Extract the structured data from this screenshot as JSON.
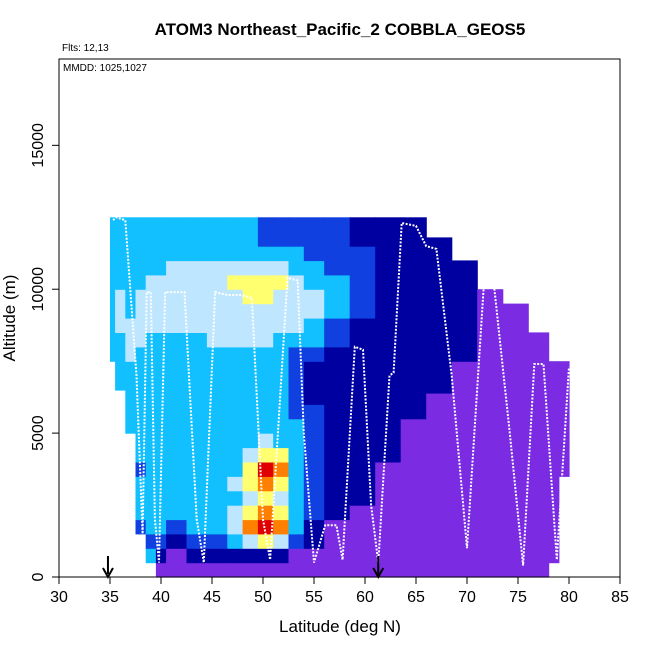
{
  "chart_data": {
    "type": "heatmap",
    "title": "ATOM3 Northeast_Pacific_2 COBBLA_GEOS5",
    "flights_label": "Flts: 12,13",
    "dates_label": "MMDD: 1025,1027",
    "xlabel": "Latitude (deg N)",
    "ylabel": "Altitude (m)",
    "xlim": [
      30,
      85
    ],
    "ylim": [
      0,
      18000
    ],
    "x_ticks": [
      30,
      35,
      40,
      45,
      50,
      55,
      60,
      65,
      70,
      75,
      80,
      85
    ],
    "y_ticks": [
      0,
      5000,
      10000,
      15000
    ],
    "arrow_markers_lat": [
      34.8,
      61.3
    ],
    "colormap": [
      "#7b2be2",
      "#0000a0",
      "#1040e0",
      "#12c0ff",
      "#bfe6ff",
      "#ffff70",
      "#ff8000",
      "#e00000"
    ],
    "color_levels": [
      0,
      1,
      2,
      3,
      4,
      5,
      6,
      7
    ],
    "grid_columns": [
      {
        "lat0": 35.0,
        "lat1": 35.5,
        "bottom": 7500,
        "top": 12500,
        "cells": [
          3,
          3,
          3,
          3,
          3,
          3,
          3,
          3,
          3,
          3
        ]
      },
      {
        "lat0": 35.5,
        "lat1": 36.5,
        "bottom": 6500,
        "top": 12500,
        "cells": [
          3,
          3,
          3,
          3,
          4,
          4,
          4,
          3,
          3,
          3,
          3,
          3
        ]
      },
      {
        "lat0": 36.5,
        "lat1": 37.5,
        "bottom": 5000,
        "top": 12500,
        "cells": [
          3,
          3,
          3,
          3,
          3,
          4,
          4,
          4,
          3,
          3,
          3,
          3,
          3,
          3,
          3
        ]
      },
      {
        "lat0": 37.5,
        "lat1": 38.5,
        "bottom": 1500,
        "top": 12500,
        "cells": [
          2,
          3,
          3,
          3,
          2,
          3,
          3,
          3,
          3,
          3,
          3,
          3,
          3,
          4,
          4,
          4,
          4,
          3,
          3,
          3,
          3,
          3
        ]
      },
      {
        "lat0": 38.5,
        "lat1": 39.5,
        "bottom": 500,
        "top": 12500,
        "cells": [
          3,
          2,
          3,
          3,
          3,
          3,
          3,
          3,
          3,
          3,
          3,
          3,
          3,
          3,
          3,
          3,
          4,
          4,
          4,
          4,
          3,
          3,
          3,
          3
        ]
      },
      {
        "lat0": 39.5,
        "lat1": 40.5,
        "bottom": 0,
        "top": 12500,
        "cells": [
          0,
          1,
          2,
          3,
          3,
          3,
          3,
          3,
          3,
          3,
          3,
          3,
          3,
          3,
          3,
          3,
          3,
          4,
          4,
          4,
          4,
          3,
          3,
          3,
          3
        ]
      },
      {
        "lat0": 40.5,
        "lat1": 42.5,
        "bottom": 0,
        "top": 12500,
        "cells": [
          0,
          0,
          1,
          2,
          3,
          3,
          3,
          3,
          3,
          3,
          3,
          3,
          3,
          3,
          3,
          3,
          3,
          4,
          4,
          4,
          4,
          4,
          3,
          3,
          3
        ]
      },
      {
        "lat0": 42.5,
        "lat1": 44.5,
        "bottom": 0,
        "top": 12500,
        "cells": [
          0,
          1,
          2,
          3,
          3,
          3,
          3,
          3,
          3,
          3,
          3,
          3,
          3,
          3,
          3,
          3,
          3,
          4,
          4,
          4,
          4,
          4,
          3,
          3,
          3
        ]
      },
      {
        "lat0": 44.5,
        "lat1": 46.5,
        "bottom": 0,
        "top": 12500,
        "cells": [
          0,
          1,
          2,
          3,
          3,
          3,
          3,
          3,
          3,
          3,
          3,
          3,
          3,
          3,
          3,
          3,
          4,
          4,
          4,
          4,
          4,
          4,
          3,
          3,
          3
        ]
      },
      {
        "lat0": 46.5,
        "lat1": 48.0,
        "bottom": 0,
        "top": 12500,
        "cells": [
          0,
          1,
          3,
          4,
          4,
          3,
          4,
          3,
          3,
          3,
          3,
          3,
          3,
          3,
          3,
          3,
          4,
          4,
          4,
          4,
          5,
          4,
          3,
          3,
          3
        ]
      },
      {
        "lat0": 48.0,
        "lat1": 49.5,
        "bottom": 0,
        "top": 12500,
        "cells": [
          0,
          1,
          4,
          6,
          5,
          4,
          5,
          5,
          4,
          3,
          3,
          3,
          3,
          3,
          3,
          3,
          4,
          4,
          4,
          5,
          5,
          4,
          3,
          3,
          3
        ]
      },
      {
        "lat0": 49.5,
        "lat1": 51.0,
        "bottom": 0,
        "top": 12500,
        "cells": [
          0,
          1,
          5,
          7,
          6,
          5,
          6,
          7,
          5,
          4,
          3,
          3,
          3,
          3,
          3,
          3,
          4,
          4,
          4,
          5,
          5,
          4,
          3,
          2,
          2
        ]
      },
      {
        "lat0": 51.0,
        "lat1": 52.5,
        "bottom": 0,
        "top": 12500,
        "cells": [
          0,
          1,
          4,
          6,
          5,
          4,
          5,
          6,
          5,
          3,
          3,
          3,
          3,
          3,
          3,
          3,
          3,
          4,
          4,
          4,
          5,
          4,
          3,
          2,
          2
        ]
      },
      {
        "lat0": 52.5,
        "lat1": 54.0,
        "bottom": 0,
        "top": 12500,
        "cells": [
          0,
          0,
          2,
          3,
          3,
          3,
          3,
          3,
          3,
          3,
          3,
          2,
          2,
          2,
          2,
          2,
          3,
          4,
          4,
          4,
          4,
          3,
          3,
          2,
          2
        ]
      },
      {
        "lat0": 54.0,
        "lat1": 56.0,
        "bottom": 0,
        "top": 12500,
        "cells": [
          0,
          0,
          1,
          1,
          2,
          2,
          2,
          2,
          2,
          2,
          2,
          2,
          1,
          1,
          1,
          2,
          3,
          3,
          4,
          4,
          3,
          3,
          2,
          2,
          2
        ]
      },
      {
        "lat0": 56.0,
        "lat1": 58.5,
        "bottom": 0,
        "top": 12500,
        "cells": [
          0,
          0,
          0,
          0,
          1,
          1,
          1,
          1,
          1,
          1,
          1,
          1,
          1,
          1,
          1,
          1,
          2,
          2,
          3,
          3,
          3,
          2,
          2,
          2,
          2
        ]
      },
      {
        "lat0": 58.5,
        "lat1": 61.0,
        "bottom": 0,
        "top": 12500,
        "cells": [
          0,
          0,
          0,
          0,
          0,
          1,
          1,
          1,
          1,
          1,
          1,
          1,
          1,
          1,
          1,
          1,
          1,
          1,
          2,
          2,
          2,
          2,
          2,
          1,
          1
        ]
      },
      {
        "lat0": 61.0,
        "lat1": 63.5,
        "bottom": 0,
        "top": 12500,
        "cells": [
          0,
          0,
          0,
          0,
          0,
          0,
          0,
          0,
          1,
          1,
          1,
          1,
          1,
          1,
          1,
          1,
          1,
          1,
          1,
          1,
          1,
          1,
          1,
          1,
          1
        ]
      },
      {
        "lat0": 63.5,
        "lat1": 66.0,
        "bottom": 0,
        "top": 12500,
        "cells": [
          0,
          0,
          0,
          0,
          0,
          0,
          0,
          0,
          0,
          0,
          0,
          1,
          1,
          1,
          1,
          1,
          1,
          1,
          1,
          1,
          1,
          1,
          1,
          1,
          1
        ]
      },
      {
        "lat0": 66.0,
        "lat1": 68.5,
        "bottom": 0,
        "top": 11800,
        "cells": [
          0,
          0,
          0,
          0,
          0,
          0,
          0,
          0,
          0,
          0,
          0,
          0,
          0,
          1,
          1,
          1,
          1,
          1,
          1,
          1,
          1,
          1,
          1,
          1
        ]
      },
      {
        "lat0": 68.5,
        "lat1": 71.0,
        "bottom": 0,
        "top": 11000,
        "cells": [
          0,
          0,
          0,
          0,
          0,
          0,
          0,
          0,
          0,
          0,
          0,
          0,
          0,
          0,
          0,
          1,
          1,
          1,
          1,
          1,
          1,
          1
        ]
      },
      {
        "lat0": 71.0,
        "lat1": 73.5,
        "bottom": 0,
        "top": 10000,
        "cells": [
          0,
          0,
          0,
          0,
          0,
          0,
          0,
          0,
          0,
          0,
          0,
          0,
          0,
          0,
          0,
          0,
          0,
          0,
          0,
          0
        ]
      },
      {
        "lat0": 73.5,
        "lat1": 76.0,
        "bottom": 0,
        "top": 9500,
        "cells": [
          0,
          0,
          0,
          0,
          0,
          0,
          0,
          0,
          0,
          0,
          0,
          0,
          0,
          0,
          0,
          0,
          0,
          0,
          0
        ]
      },
      {
        "lat0": 76.0,
        "lat1": 78.0,
        "bottom": 0,
        "top": 8500,
        "cells": [
          0,
          0,
          0,
          0,
          0,
          0,
          0,
          0,
          0,
          0,
          0,
          0,
          0,
          0,
          0,
          0,
          0
        ]
      },
      {
        "lat0": 78.0,
        "lat1": 79.0,
        "bottom": 500,
        "top": 7500,
        "cells": [
          0,
          0,
          0,
          0,
          0,
          0,
          0,
          0,
          0,
          0,
          0,
          0,
          0,
          0
        ]
      },
      {
        "lat0": 79.0,
        "lat1": 80.0,
        "bottom": 3500,
        "top": 7500,
        "cells": [
          0,
          0,
          0,
          0,
          0,
          0,
          0,
          0
        ]
      }
    ],
    "flight_track": [
      [
        35.3,
        12400
      ],
      [
        35.6,
        12500
      ],
      [
        36.5,
        12400
      ],
      [
        37.6,
        7000
      ],
      [
        38.2,
        1500
      ],
      [
        38.6,
        9900
      ],
      [
        39.0,
        9900
      ],
      [
        39.4,
        2000
      ],
      [
        39.8,
        500
      ],
      [
        40.4,
        9900
      ],
      [
        41.2,
        9900
      ],
      [
        42.3,
        9900
      ],
      [
        43.5,
        2000
      ],
      [
        44.2,
        500
      ],
      [
        45.3,
        9900
      ],
      [
        46.5,
        9800
      ],
      [
        47.8,
        9800
      ],
      [
        48.9,
        9700
      ],
      [
        50.0,
        2000
      ],
      [
        50.7,
        600
      ],
      [
        52.4,
        10400
      ],
      [
        53.4,
        10300
      ],
      [
        54.0,
        5000
      ],
      [
        55.0,
        500
      ],
      [
        56.1,
        1800
      ],
      [
        57.2,
        1800
      ],
      [
        57.8,
        600
      ],
      [
        59.0,
        8000
      ],
      [
        59.8,
        7900
      ],
      [
        60.6,
        2500
      ],
      [
        61.3,
        500
      ],
      [
        62.4,
        7000
      ],
      [
        62.8,
        7100
      ],
      [
        63.6,
        12300
      ],
      [
        65.0,
        12200
      ],
      [
        66.0,
        11500
      ],
      [
        67.0,
        11400
      ],
      [
        68.5,
        7000
      ],
      [
        70.0,
        1000
      ],
      [
        71.7,
        10400
      ],
      [
        72.6,
        10300
      ],
      [
        74.2,
        5000
      ],
      [
        75.5,
        400
      ],
      [
        76.6,
        7400
      ],
      [
        77.5,
        7400
      ],
      [
        78.8,
        600
      ],
      [
        80.0,
        7300
      ]
    ]
  }
}
